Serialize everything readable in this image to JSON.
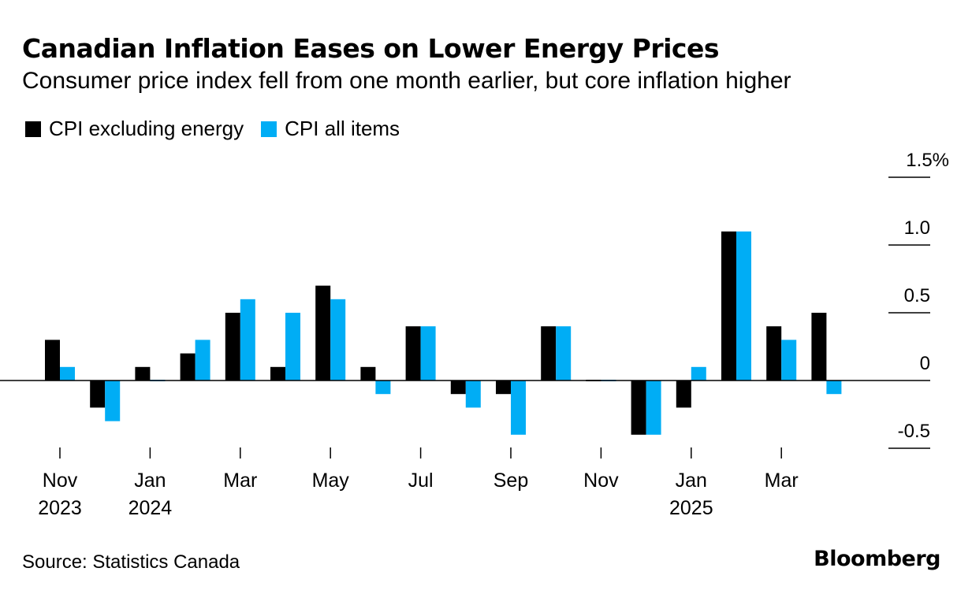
{
  "header": {
    "title": "Canadian Inflation Eases on Lower Energy Prices",
    "subtitle": "Consumer price index fell from one month earlier, but core inflation higher"
  },
  "legend": [
    {
      "label": "CPI excluding energy",
      "color": "#000000"
    },
    {
      "label": "CPI all items",
      "color": "#00adf5"
    }
  ],
  "footer": {
    "source": "Source: Statistics Canada",
    "brand": "Bloomberg"
  },
  "chart_data": {
    "type": "bar",
    "title": "Canadian Inflation Eases on Lower Energy Prices",
    "subtitle": "Consumer price index fell from one month earlier, but core inflation higher",
    "categories": [
      "Nov 2023",
      "Dec 2023",
      "Jan 2024",
      "Feb 2024",
      "Mar 2024",
      "Apr 2024",
      "May 2024",
      "Jun 2024",
      "Jul 2024",
      "Aug 2024",
      "Sep 2024",
      "Oct 2024",
      "Nov 2024",
      "Dec 2024",
      "Jan 2025",
      "Feb 2025",
      "Mar 2025",
      "Apr 2025"
    ],
    "series": [
      {
        "name": "CPI excluding energy",
        "color": "#000000",
        "values": [
          0.3,
          -0.2,
          0.1,
          0.2,
          0.5,
          0.1,
          0.7,
          0.1,
          0.4,
          -0.1,
          -0.1,
          0.4,
          0.0,
          -0.4,
          -0.2,
          1.1,
          0.4,
          0.5
        ]
      },
      {
        "name": "CPI all items",
        "color": "#00adf5",
        "values": [
          0.1,
          -0.3,
          0.0,
          0.3,
          0.6,
          0.5,
          0.6,
          -0.1,
          0.4,
          -0.2,
          -0.4,
          0.4,
          0.0,
          -0.4,
          0.1,
          1.1,
          0.3,
          -0.1
        ]
      }
    ],
    "x_tick_labels": [
      {
        "index": 0,
        "line1": "Nov",
        "line2": "2023"
      },
      {
        "index": 2,
        "line1": "Jan",
        "line2": "2024"
      },
      {
        "index": 4,
        "line1": "Mar",
        "line2": ""
      },
      {
        "index": 6,
        "line1": "May",
        "line2": ""
      },
      {
        "index": 8,
        "line1": "Jul",
        "line2": ""
      },
      {
        "index": 10,
        "line1": "Sep",
        "line2": ""
      },
      {
        "index": 12,
        "line1": "Nov",
        "line2": ""
      },
      {
        "index": 14,
        "line1": "Jan",
        "line2": "2025"
      },
      {
        "index": 16,
        "line1": "Mar",
        "line2": ""
      }
    ],
    "y_ticks": [
      {
        "value": -0.5,
        "label": "-0.5"
      },
      {
        "value": 0,
        "label": "0"
      },
      {
        "value": 0.5,
        "label": "0.5"
      },
      {
        "value": 1.0,
        "label": "1.0"
      },
      {
        "value": 1.5,
        "label": "1.5%"
      }
    ],
    "ylim": [
      -0.5,
      1.5
    ],
    "y_axis_position": "right",
    "legend_position": "top-left",
    "grid": false
  }
}
